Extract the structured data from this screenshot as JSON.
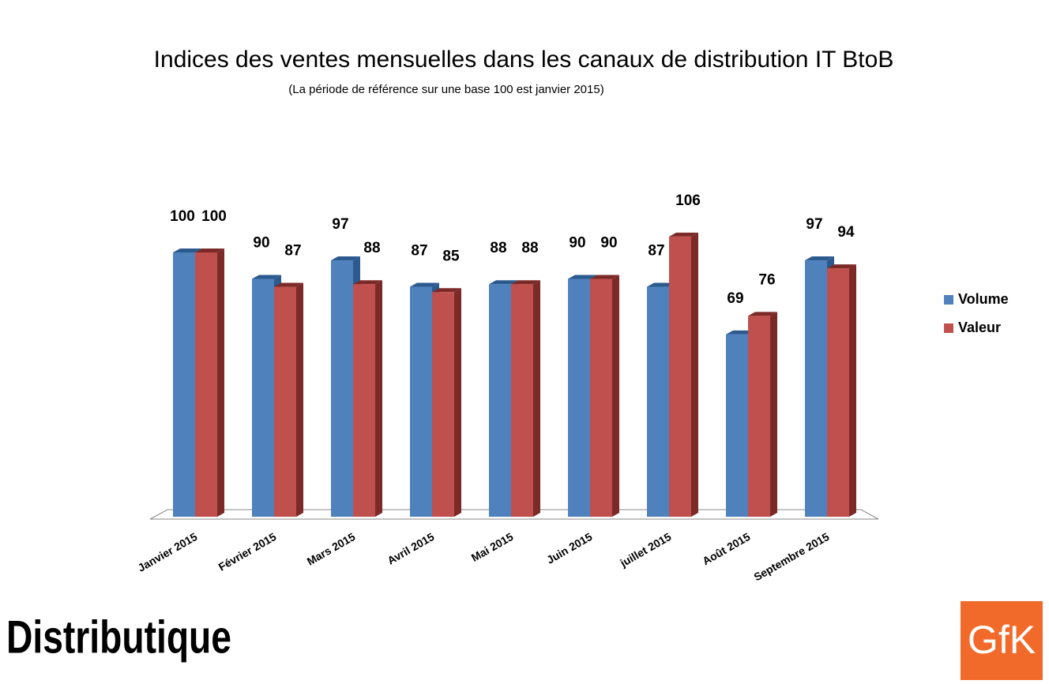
{
  "chart_data": {
    "type": "bar3d",
    "title": "Indices des ventes mensuelles dans les canaux de distribution IT BtoB",
    "subtitle": "(La période de référence sur une base 100 est janvier 2015)",
    "categories": [
      "Janvier 2015",
      "Février 2015",
      "Mars 2015",
      "Avril 2015",
      "Mai 2015",
      "Juin 2015",
      "juillet 2015",
      "Août 2015",
      "Septembre 2015"
    ],
    "series": [
      {
        "name": "Volume",
        "color": "#4f81bd",
        "side": "#2c5a8f",
        "values": [
          100,
          90,
          97,
          87,
          88,
          90,
          87,
          69,
          97
        ]
      },
      {
        "name": "Valeur",
        "color": "#c0504d",
        "side": "#7b2a28",
        "values": [
          100,
          87,
          88,
          85,
          88,
          90,
          106,
          76,
          94
        ]
      }
    ],
    "ylim": [
      0,
      120
    ],
    "legend": "right"
  },
  "logos": [
    "Distributique",
    "GfK"
  ]
}
